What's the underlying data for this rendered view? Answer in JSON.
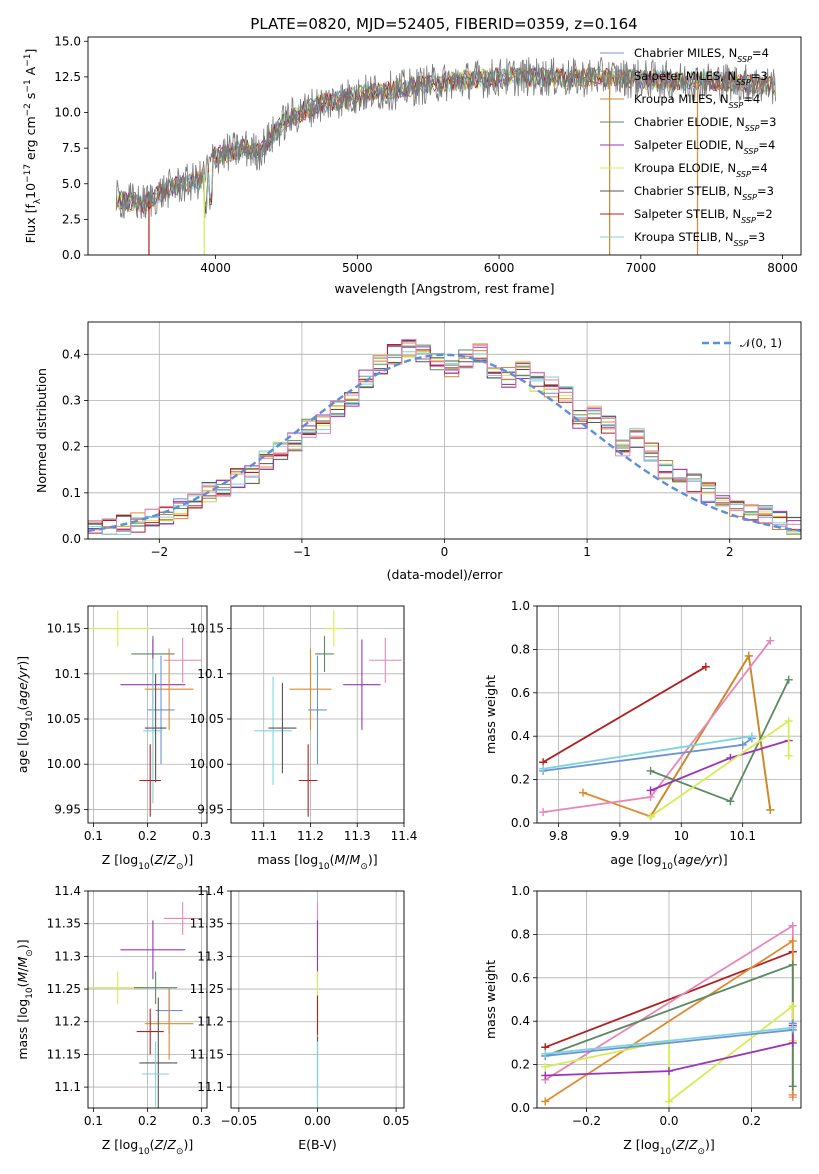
{
  "figure_title": "PLATE=0820, MJD=52405, FIBERID=0359, z=0.164",
  "colors": {
    "chabrier_miles": "#6b93d6",
    "salpeter_miles": "#e08a2e",
    "kroupa_miles": "#c98a2a",
    "chabrier_elodie": "#5b8a63",
    "salpeter_elodie": "#9a35b8",
    "kroupa_elodie": "#d7ec52",
    "chabrier_stelib": "#555555",
    "salpeter_stelib": "#b22020",
    "kroupa_stelib": "#7fd3de",
    "extra_pink": "#e687b8",
    "data_gray": "#7a7a7a",
    "normal_curve": "#5b8fd9"
  },
  "chart_data": [
    {
      "id": "spectrum",
      "type": "line",
      "xlabel": "wavelength [Angstrom, rest frame]",
      "ylabel": "Flux [f_λ 10^-17 erg cm^-2 s^-1 A^-1]",
      "xlim": [
        3100,
        8130
      ],
      "ylim": [
        0,
        15.3
      ],
      "xticks": [
        4000,
        5000,
        6000,
        7000,
        8000
      ],
      "yticks": [
        "0.0",
        "2.5",
        "5.0",
        "7.5",
        "10.0",
        "12.5",
        "15.0"
      ],
      "grid": false,
      "legend_position": "right",
      "continuum": {
        "x": [
          3300,
          3500,
          3600,
          3700,
          3800,
          3900,
          4000,
          4100,
          4200,
          4300,
          4500,
          4700,
          4900,
          5100,
          5300,
          5500,
          5700,
          5900,
          6100,
          6300,
          6500,
          6700,
          6900,
          7100,
          7300,
          7500,
          7700,
          7900
        ],
        "y": [
          3.9,
          3.6,
          4.3,
          4.8,
          5.0,
          5.3,
          7.0,
          7.2,
          7.5,
          7.2,
          9.5,
          10.5,
          11.0,
          11.4,
          11.6,
          12.0,
          12.2,
          12.4,
          12.5,
          12.5,
          12.4,
          12.5,
          12.4,
          12.3,
          12.2,
          12.2,
          12.1,
          11.9
        ]
      },
      "series": [
        {
          "name": "Chabrier MILES, N_SSP=4",
          "color_key": "chabrier_miles"
        },
        {
          "name": "Salpeter MILES, N_SSP=3",
          "color_key": "salpeter_miles"
        },
        {
          "name": "Kroupa MILES, N_SSP=4",
          "color_key": "kroupa_miles"
        },
        {
          "name": "Chabrier ELODIE, N_SSP=3",
          "color_key": "chabrier_elodie"
        },
        {
          "name": "Salpeter ELODIE, N_SSP=4",
          "color_key": "salpeter_elodie"
        },
        {
          "name": "Kroupa ELODIE, N_SSP=4",
          "color_key": "kroupa_elodie"
        },
        {
          "name": "Chabrier STELIB, N_SSP=3",
          "color_key": "chabrier_stelib"
        },
        {
          "name": "Salpeter STELIB, N_SSP=2",
          "color_key": "salpeter_stelib"
        },
        {
          "name": "Kroupa STELIB, N_SSP=3",
          "color_key": "kroupa_stelib"
        }
      ],
      "legend_labels": [
        {
          "base": "Chabrier MILES, N",
          "sub": "SSP",
          "tail": "=4"
        },
        {
          "base": "Salpeter MILES, N",
          "sub": "SSP",
          "tail": "=3"
        },
        {
          "base": "Kroupa MILES, N",
          "sub": "SSP",
          "tail": "=4"
        },
        {
          "base": "Chabrier ELODIE, N",
          "sub": "SSP",
          "tail": "=3"
        },
        {
          "base": "Salpeter ELODIE, N",
          "sub": "SSP",
          "tail": "=4"
        },
        {
          "base": "Kroupa ELODIE, N",
          "sub": "SSP",
          "tail": "=4"
        },
        {
          "base": "Chabrier STELIB, N",
          "sub": "SSP",
          "tail": "=3"
        },
        {
          "base": "Salpeter STELIB, N",
          "sub": "SSP",
          "tail": "=2"
        },
        {
          "base": "Kroupa STELIB, N",
          "sub": "SSP",
          "tail": "=3"
        }
      ]
    },
    {
      "id": "residual_hist",
      "type": "area",
      "xlabel": "(data-model)/error",
      "ylabel": "Normed distribution",
      "xlim": [
        -2.5,
        2.5
      ],
      "ylim": [
        0,
        0.47
      ],
      "xticks": [
        -2,
        -1,
        0,
        1,
        2
      ],
      "xtick_labels": [
        "−2",
        "−1",
        "0",
        "1",
        "2"
      ],
      "yticks": [
        "0.0",
        "0.1",
        "0.2",
        "0.3",
        "0.4"
      ],
      "grid": true,
      "legend": "𝒩(0, 1)",
      "legend_position": "top-right",
      "bins": [
        -2.5,
        -2.4,
        -2.3,
        -2.2,
        -2.1,
        -2.0,
        -1.9,
        -1.8,
        -1.7,
        -1.6,
        -1.5,
        -1.4,
        -1.3,
        -1.2,
        -1.1,
        -1.0,
        -0.9,
        -0.8,
        -0.7,
        -0.6,
        -0.5,
        -0.4,
        -0.3,
        -0.2,
        -0.1,
        0.0,
        0.1,
        0.2,
        0.3,
        0.4,
        0.5,
        0.6,
        0.7,
        0.8,
        0.9,
        1.0,
        1.1,
        1.2,
        1.3,
        1.4,
        1.5,
        1.6,
        1.7,
        1.8,
        1.9,
        2.0,
        2.1,
        2.2,
        2.3,
        2.4,
        2.5
      ],
      "base_density": [
        0.022,
        0.026,
        0.03,
        0.036,
        0.045,
        0.052,
        0.065,
        0.08,
        0.1,
        0.115,
        0.13,
        0.14,
        0.17,
        0.19,
        0.21,
        0.24,
        0.25,
        0.28,
        0.31,
        0.35,
        0.38,
        0.4,
        0.41,
        0.4,
        0.38,
        0.37,
        0.39,
        0.4,
        0.36,
        0.35,
        0.37,
        0.34,
        0.33,
        0.31,
        0.26,
        0.27,
        0.25,
        0.2,
        0.22,
        0.19,
        0.15,
        0.13,
        0.12,
        0.1,
        0.08,
        0.07,
        0.06,
        0.05,
        0.04,
        0.03
      ]
    },
    {
      "id": "age_vs_Z",
      "type": "scatter",
      "xlabel": "Z [log10(Z/Z⊙)]",
      "ylabel": "age  [log10(age/yr)]",
      "xlim": [
        0.09,
        0.31
      ],
      "ylim": [
        9.935,
        10.175
      ],
      "xticks": [
        0.1,
        0.2,
        0.3
      ],
      "yticks": [
        9.95,
        10.0,
        10.05,
        10.1,
        10.15
      ],
      "grid": true,
      "points": [
        {
          "color_key": "kroupa_elodie",
          "x": 0.145,
          "y": 10.15,
          "xerr": 0.058,
          "yerr": 0.02
        },
        {
          "color_key": "chabrier_elodie",
          "x": 0.21,
          "y": 10.122,
          "xerr": 0.04,
          "yerr": 0.02
        },
        {
          "color_key": "extra_pink",
          "x": 0.265,
          "y": 10.115,
          "xerr": 0.035,
          "yerr": 0.025
        },
        {
          "color_key": "salpeter_elodie",
          "x": 0.21,
          "y": 10.088,
          "xerr": 0.06,
          "yerr": 0.05
        },
        {
          "color_key": "salpeter_miles",
          "x": 0.24,
          "y": 10.083,
          "xerr": 0.045,
          "yerr": 0.045
        },
        {
          "color_key": "chabrier_miles",
          "x": 0.225,
          "y": 10.06,
          "xerr": 0.025,
          "yerr": 0.06
        },
        {
          "color_key": "kroupa_stelib",
          "x": 0.21,
          "y": 10.037,
          "xerr": 0.018,
          "yerr": 0.08
        },
        {
          "color_key": "chabrier_stelib",
          "x": 0.215,
          "y": 10.04,
          "xerr": 0.02,
          "yerr": 0.06
        },
        {
          "color_key": "salpeter_stelib",
          "x": 0.205,
          "y": 9.982,
          "xerr": 0.02,
          "yerr": 0.04
        }
      ]
    },
    {
      "id": "age_vs_mass",
      "type": "scatter",
      "xlabel": "mass [log10(M/M⊙)]",
      "ylabel": "",
      "xlim": [
        11.03,
        11.4
      ],
      "ylim": [
        9.935,
        10.175
      ],
      "xticks": [
        11.1,
        11.2,
        11.3,
        11.4
      ],
      "yticks": [
        9.95,
        10.0,
        10.05,
        10.1,
        10.15
      ],
      "grid": true,
      "points": [
        {
          "color_key": "kroupa_elodie",
          "x": 11.25,
          "y": 10.15,
          "xerr": 0.02,
          "yerr": 0.02
        },
        {
          "color_key": "chabrier_elodie",
          "x": 11.23,
          "y": 10.122,
          "xerr": 0.02,
          "yerr": 0.02
        },
        {
          "color_key": "extra_pink",
          "x": 11.36,
          "y": 10.115,
          "xerr": 0.035,
          "yerr": 0.025
        },
        {
          "color_key": "salpeter_elodie",
          "x": 11.31,
          "y": 10.088,
          "xerr": 0.04,
          "yerr": 0.05
        },
        {
          "color_key": "salpeter_miles",
          "x": 11.2,
          "y": 10.083,
          "xerr": 0.045,
          "yerr": 0.045
        },
        {
          "color_key": "chabrier_miles",
          "x": 11.215,
          "y": 10.06,
          "xerr": 0.02,
          "yerr": 0.06
        },
        {
          "color_key": "kroupa_stelib",
          "x": 11.12,
          "y": 10.037,
          "xerr": 0.04,
          "yerr": 0.06
        },
        {
          "color_key": "chabrier_stelib",
          "x": 11.14,
          "y": 10.04,
          "xerr": 0.03,
          "yerr": 0.05
        },
        {
          "color_key": "salpeter_stelib",
          "x": 11.195,
          "y": 9.982,
          "xerr": 0.02,
          "yerr": 0.04
        }
      ]
    },
    {
      "id": "weight_vs_age",
      "type": "line",
      "xlabel": "age  [log10(age/yr)]",
      "ylabel": "mass weight",
      "xlim": [
        9.765,
        10.195
      ],
      "ylim": [
        0,
        1
      ],
      "xticks": [
        9.8,
        9.9,
        10.0,
        10.1
      ],
      "yticks": [
        "0.0",
        "0.2",
        "0.4",
        "0.6",
        "0.8",
        "1.0"
      ],
      "grid": true,
      "series": [
        {
          "color_key": "salpeter_stelib",
          "x": [
            9.775,
            10.04
          ],
          "y": [
            0.28,
            0.72
          ]
        },
        {
          "color_key": "salpeter_miles",
          "x": [
            9.84,
            9.95,
            10.11,
            10.145
          ],
          "y": [
            0.14,
            0.03,
            0.77,
            0.06
          ]
        },
        {
          "color_key": "kroupa_miles",
          "x": [
            9.95,
            10.11,
            10.145
          ],
          "y": [
            0.03,
            0.77,
            0.06
          ]
        },
        {
          "color_key": "extra_pink",
          "x": [
            9.775,
            9.95,
            10.145
          ],
          "y": [
            0.05,
            0.12,
            0.84
          ]
        },
        {
          "color_key": "chabrier_elodie",
          "x": [
            9.95,
            10.08,
            10.175
          ],
          "y": [
            0.24,
            0.1,
            0.66
          ]
        },
        {
          "color_key": "salpeter_elodie",
          "x": [
            9.95,
            10.08,
            10.175
          ],
          "y": [
            0.15,
            0.3,
            0.38
          ]
        },
        {
          "color_key": "kroupa_elodie",
          "x": [
            9.95,
            10.175,
            10.175
          ],
          "y": [
            0.03,
            0.47,
            0.31
          ]
        },
        {
          "color_key": "chabrier_miles",
          "x": [
            9.775,
            10.1,
            10.115
          ],
          "y": [
            0.24,
            0.36,
            0.39
          ]
        },
        {
          "color_key": "kroupa_stelib",
          "x": [
            9.775,
            10.115
          ],
          "y": [
            0.25,
            0.4
          ]
        }
      ]
    },
    {
      "id": "mass_vs_Z",
      "type": "scatter",
      "xlabel": "Z [log10(Z/Z⊙)]",
      "ylabel": "mass [log10(M/M⊙)]",
      "xlim": [
        0.09,
        0.31
      ],
      "ylim": [
        11.068,
        11.4
      ],
      "xticks": [
        0.1,
        0.2,
        0.3
      ],
      "yticks": [
        11.1,
        11.15,
        11.2,
        11.25,
        11.3,
        11.35,
        11.4
      ],
      "grid": true,
      "points": [
        {
          "color_key": "extra_pink",
          "x": 0.265,
          "y": 11.358,
          "xerr": 0.035,
          "yerr": 0.025
        },
        {
          "color_key": "salpeter_elodie",
          "x": 0.21,
          "y": 11.31,
          "xerr": 0.06,
          "yerr": 0.045
        },
        {
          "color_key": "kroupa_elodie",
          "x": 0.145,
          "y": 11.252,
          "xerr": 0.058,
          "yerr": 0.025
        },
        {
          "color_key": "chabrier_elodie",
          "x": 0.215,
          "y": 11.252,
          "xerr": 0.04,
          "yerr": 0.025
        },
        {
          "color_key": "chabrier_miles",
          "x": 0.24,
          "y": 11.217,
          "xerr": 0.025,
          "yerr": 0.035
        },
        {
          "color_key": "salpeter_miles",
          "x": 0.24,
          "y": 11.197,
          "xerr": 0.045,
          "yerr": 0.055
        },
        {
          "color_key": "salpeter_stelib",
          "x": 0.205,
          "y": 11.185,
          "xerr": 0.025,
          "yerr": 0.035
        },
        {
          "color_key": "chabrier_stelib",
          "x": 0.22,
          "y": 11.137,
          "xerr": 0.035,
          "yerr": 0.1
        },
        {
          "color_key": "kroupa_stelib",
          "x": 0.215,
          "y": 11.12,
          "xerr": 0.025,
          "yerr": 0.05
        }
      ]
    },
    {
      "id": "mass_vs_ebv",
      "type": "scatter",
      "xlabel": "E(B-V)",
      "ylabel": "",
      "xlim": [
        -0.055,
        0.055
      ],
      "ylim": [
        11.068,
        11.4
      ],
      "xticks": [
        -0.05,
        0.0,
        0.05
      ],
      "xtick_labels": [
        "−0.05",
        "0.00",
        "0.05"
      ],
      "yticks": [
        11.1,
        11.15,
        11.2,
        11.25,
        11.3,
        11.35,
        11.4
      ],
      "grid": true,
      "points": [
        {
          "color_key": "extra_pink",
          "x": 0.0,
          "y": 11.358,
          "xerr": 0,
          "yerr": 0.025
        },
        {
          "color_key": "salpeter_elodie",
          "x": 0.0,
          "y": 11.31,
          "xerr": 0,
          "yerr": 0.045
        },
        {
          "color_key": "kroupa_elodie",
          "x": 0.0,
          "y": 11.252,
          "xerr": 0,
          "yerr": 0.025
        },
        {
          "color_key": "salpeter_miles",
          "x": 0.0,
          "y": 11.2,
          "xerr": 0,
          "yerr": 0.03
        },
        {
          "color_key": "salpeter_stelib",
          "x": 0.0,
          "y": 11.21,
          "xerr": 0,
          "yerr": 0.03
        },
        {
          "color_key": "chabrier_stelib",
          "x": 0.0,
          "y": 11.137,
          "xerr": 0,
          "yerr": 0.04
        },
        {
          "color_key": "kroupa_stelib",
          "x": 0.0,
          "y": 11.12,
          "xerr": 0,
          "yerr": 0.05
        }
      ]
    },
    {
      "id": "weight_vs_Z",
      "type": "line",
      "xlabel": "Z [log10(Z/Z⊙)]",
      "ylabel": "mass weight",
      "xlim": [
        -0.32,
        0.32
      ],
      "ylim": [
        0,
        1
      ],
      "xticks": [
        -0.2,
        0.0,
        0.2
      ],
      "xtick_labels": [
        "−0.2",
        "0.0",
        "0.2"
      ],
      "yticks": [
        "0.0",
        "0.2",
        "0.4",
        "0.6",
        "0.8",
        "1.0"
      ],
      "grid": true,
      "series": [
        {
          "color_key": "salpeter_stelib",
          "x": [
            -0.3,
            0.3
          ],
          "y": [
            0.28,
            0.72
          ]
        },
        {
          "color_key": "extra_pink",
          "x": [
            -0.3,
            0.3,
            0.3
          ],
          "y": [
            0.13,
            0.84,
            0.05
          ]
        },
        {
          "color_key": "salpeter_miles",
          "x": [
            -0.3,
            0.3,
            0.3
          ],
          "y": [
            0.03,
            0.77,
            0.06
          ]
        },
        {
          "color_key": "chabrier_elodie",
          "x": [
            -0.3,
            0.3,
            0.3
          ],
          "y": [
            0.24,
            0.66,
            0.1
          ]
        },
        {
          "color_key": "kroupa_elodie",
          "x": [
            -0.3,
            0.0,
            0.0,
            0.3,
            0.3
          ],
          "y": [
            0.19,
            0.31,
            0.03,
            0.47,
            0.31
          ]
        },
        {
          "color_key": "salpeter_elodie",
          "x": [
            -0.3,
            0.0,
            0.3,
            0.3
          ],
          "y": [
            0.15,
            0.17,
            0.3,
            0.38
          ]
        },
        {
          "color_key": "chabrier_miles",
          "x": [
            -0.3,
            0.3,
            0.3
          ],
          "y": [
            0.24,
            0.36,
            0.39
          ]
        },
        {
          "color_key": "kroupa_stelib",
          "x": [
            -0.3,
            0.3
          ],
          "y": [
            0.25,
            0.37
          ]
        }
      ]
    }
  ]
}
